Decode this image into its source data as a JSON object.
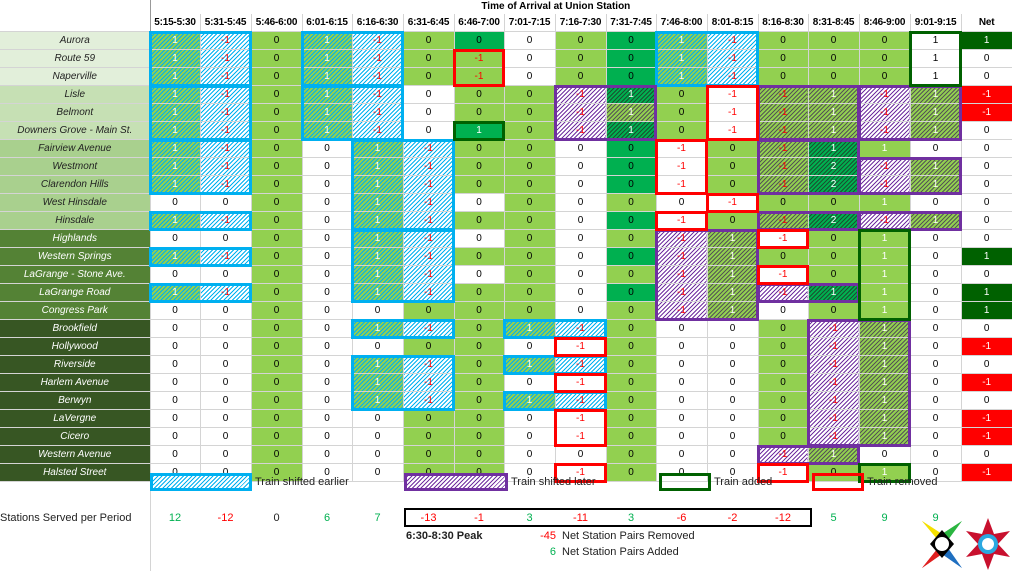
{
  "title": "Time of Arrival at Union Station",
  "net_header": "Net",
  "periods": [
    "5:15-5:30",
    "5:31-5:45",
    "5:46-6:00",
    "6:01-6:15",
    "6:16-6:30",
    "6:31-6:45",
    "6:46-7:00",
    "7:01-7:15",
    "7:16-7:30",
    "7:31-7:45",
    "7:46-8:00",
    "8:01-8:15",
    "8:16-8:30",
    "8:31-8:45",
    "8:46-9:00",
    "9:01-9:15"
  ],
  "zone_colors": [
    "#e2efda",
    "#c6e0b4",
    "#a9d08e",
    "#548235",
    "#375623"
  ],
  "stations": [
    {
      "name": "Aurora",
      "zone": 0,
      "values": [
        1,
        -1,
        0,
        1,
        -1,
        0,
        0,
        0,
        0,
        0,
        1,
        -1,
        0,
        0,
        0,
        1
      ],
      "net": 1
    },
    {
      "name": "Route 59",
      "zone": 0,
      "values": [
        1,
        -1,
        0,
        1,
        -1,
        0,
        -1,
        0,
        0,
        0,
        1,
        -1,
        0,
        0,
        0,
        1
      ],
      "net": 0
    },
    {
      "name": "Naperville",
      "zone": 0,
      "values": [
        1,
        -1,
        0,
        1,
        -1,
        0,
        -1,
        0,
        0,
        0,
        1,
        -1,
        0,
        0,
        0,
        1
      ],
      "net": 0
    },
    {
      "name": "Lisle",
      "zone": 1,
      "values": [
        1,
        -1,
        0,
        1,
        -1,
        0,
        0,
        0,
        -1,
        1,
        0,
        -1,
        -1,
        1,
        -1,
        1
      ],
      "net": -1
    },
    {
      "name": "Belmont",
      "zone": 1,
      "values": [
        1,
        -1,
        0,
        1,
        -1,
        0,
        0,
        0,
        -1,
        1,
        0,
        -1,
        -1,
        1,
        -1,
        1
      ],
      "net": -1
    },
    {
      "name": "Downers Grove - Main St.",
      "zone": 1,
      "values": [
        1,
        -1,
        0,
        1,
        -1,
        0,
        1,
        0,
        -1,
        1,
        0,
        -1,
        -1,
        1,
        -1,
        1
      ],
      "net": 0
    },
    {
      "name": "Fairview Avenue",
      "zone": 2,
      "values": [
        1,
        -1,
        0,
        0,
        1,
        -1,
        0,
        0,
        0,
        0,
        -1,
        0,
        -1,
        1,
        1,
        0
      ],
      "net": 0
    },
    {
      "name": "Westmont",
      "zone": 2,
      "values": [
        1,
        -1,
        0,
        0,
        1,
        -1,
        0,
        0,
        0,
        0,
        -1,
        0,
        -1,
        2,
        -1,
        1
      ],
      "net": 0
    },
    {
      "name": "Clarendon Hills",
      "zone": 2,
      "values": [
        1,
        -1,
        0,
        0,
        1,
        -1,
        0,
        0,
        0,
        0,
        -1,
        0,
        -1,
        2,
        -1,
        1
      ],
      "net": 0
    },
    {
      "name": "West Hinsdale",
      "zone": 2,
      "values": [
        0,
        0,
        0,
        0,
        1,
        -1,
        0,
        0,
        0,
        0,
        0,
        -1,
        0,
        0,
        1,
        0
      ],
      "net": 0
    },
    {
      "name": "Hinsdale",
      "zone": 2,
      "values": [
        1,
        -1,
        0,
        0,
        1,
        -1,
        0,
        0,
        0,
        0,
        -1,
        0,
        -1,
        2,
        -1,
        1
      ],
      "net": 0
    },
    {
      "name": "Highlands",
      "zone": 3,
      "values": [
        0,
        0,
        0,
        0,
        1,
        -1,
        0,
        0,
        0,
        0,
        -1,
        1,
        -1,
        0,
        1,
        0
      ],
      "net": 0
    },
    {
      "name": "Western Springs",
      "zone": 3,
      "values": [
        1,
        -1,
        0,
        0,
        1,
        -1,
        0,
        0,
        0,
        0,
        -1,
        1,
        0,
        0,
        1,
        0
      ],
      "net": 1
    },
    {
      "name": "LaGrange - Stone Ave.",
      "zone": 3,
      "values": [
        0,
        0,
        0,
        0,
        1,
        -1,
        0,
        0,
        0,
        0,
        -1,
        1,
        -1,
        0,
        1,
        0
      ],
      "net": 0
    },
    {
      "name": "LaGrange Road",
      "zone": 3,
      "values": [
        1,
        -1,
        0,
        0,
        1,
        -1,
        0,
        0,
        0,
        0,
        -1,
        1,
        -1,
        1,
        1,
        0
      ],
      "net": 1
    },
    {
      "name": "Congress Park",
      "zone": 3,
      "values": [
        0,
        0,
        0,
        0,
        0,
        0,
        0,
        0,
        0,
        0,
        -1,
        1,
        0,
        0,
        1,
        0
      ],
      "net": 1
    },
    {
      "name": "Brookfield",
      "zone": 4,
      "values": [
        0,
        0,
        0,
        0,
        1,
        -1,
        0,
        1,
        -1,
        0,
        0,
        0,
        0,
        -1,
        1,
        0
      ],
      "net": 0
    },
    {
      "name": "Hollywood",
      "zone": 4,
      "values": [
        0,
        0,
        0,
        0,
        0,
        0,
        0,
        0,
        -1,
        0,
        0,
        0,
        0,
        -1,
        1,
        0
      ],
      "net": -1
    },
    {
      "name": "Riverside",
      "zone": 4,
      "values": [
        0,
        0,
        0,
        0,
        1,
        -1,
        0,
        1,
        -1,
        0,
        0,
        0,
        0,
        -1,
        1,
        0
      ],
      "net": 0
    },
    {
      "name": "Harlem Avenue",
      "zone": 4,
      "values": [
        0,
        0,
        0,
        0,
        1,
        -1,
        0,
        0,
        -1,
        0,
        0,
        0,
        0,
        -1,
        1,
        0
      ],
      "net": -1
    },
    {
      "name": "Berwyn",
      "zone": 4,
      "values": [
        0,
        0,
        0,
        0,
        1,
        -1,
        0,
        1,
        -1,
        0,
        0,
        0,
        0,
        -1,
        1,
        0
      ],
      "net": 0
    },
    {
      "name": "LaVergne",
      "zone": 4,
      "values": [
        0,
        0,
        0,
        0,
        0,
        0,
        0,
        0,
        -1,
        0,
        0,
        0,
        0,
        -1,
        1,
        0
      ],
      "net": -1
    },
    {
      "name": "Cicero",
      "zone": 4,
      "values": [
        0,
        0,
        0,
        0,
        0,
        0,
        0,
        0,
        -1,
        0,
        0,
        0,
        0,
        -1,
        1,
        0
      ],
      "net": -1
    },
    {
      "name": "Western Avenue",
      "zone": 4,
      "values": [
        0,
        0,
        0,
        0,
        0,
        0,
        0,
        0,
        0,
        0,
        0,
        0,
        -1,
        1,
        0,
        0
      ],
      "net": 0
    },
    {
      "name": "Halsted Street",
      "zone": 4,
      "values": [
        0,
        0,
        0,
        0,
        0,
        0,
        0,
        0,
        -1,
        0,
        0,
        0,
        -1,
        0,
        1,
        0
      ],
      "net": -1
    }
  ],
  "legend": {
    "shifted_earlier": "Train shifted earlier",
    "shifted_later": "Train shifted later",
    "added": "Train added",
    "removed": "Train removed"
  },
  "summary": {
    "label": "Stations Served per Period",
    "values": [
      12,
      -12,
      0,
      6,
      7,
      -13,
      -1,
      3,
      -11,
      3,
      -6,
      -2,
      -12,
      5,
      9,
      9
    ],
    "peak_label": "6:30-8:30 Peak",
    "removed_count": -45,
    "removed_label": "Net Station Pairs Removed",
    "added_count": 6,
    "added_label": "Net Station Pairs Added"
  },
  "colors": {
    "light_green": "#92d050",
    "medium_green": "#00b050",
    "dark_green": "#006100",
    "red": "#ff0000",
    "blue": "#00b0f0",
    "purple": "#7030a0"
  }
}
